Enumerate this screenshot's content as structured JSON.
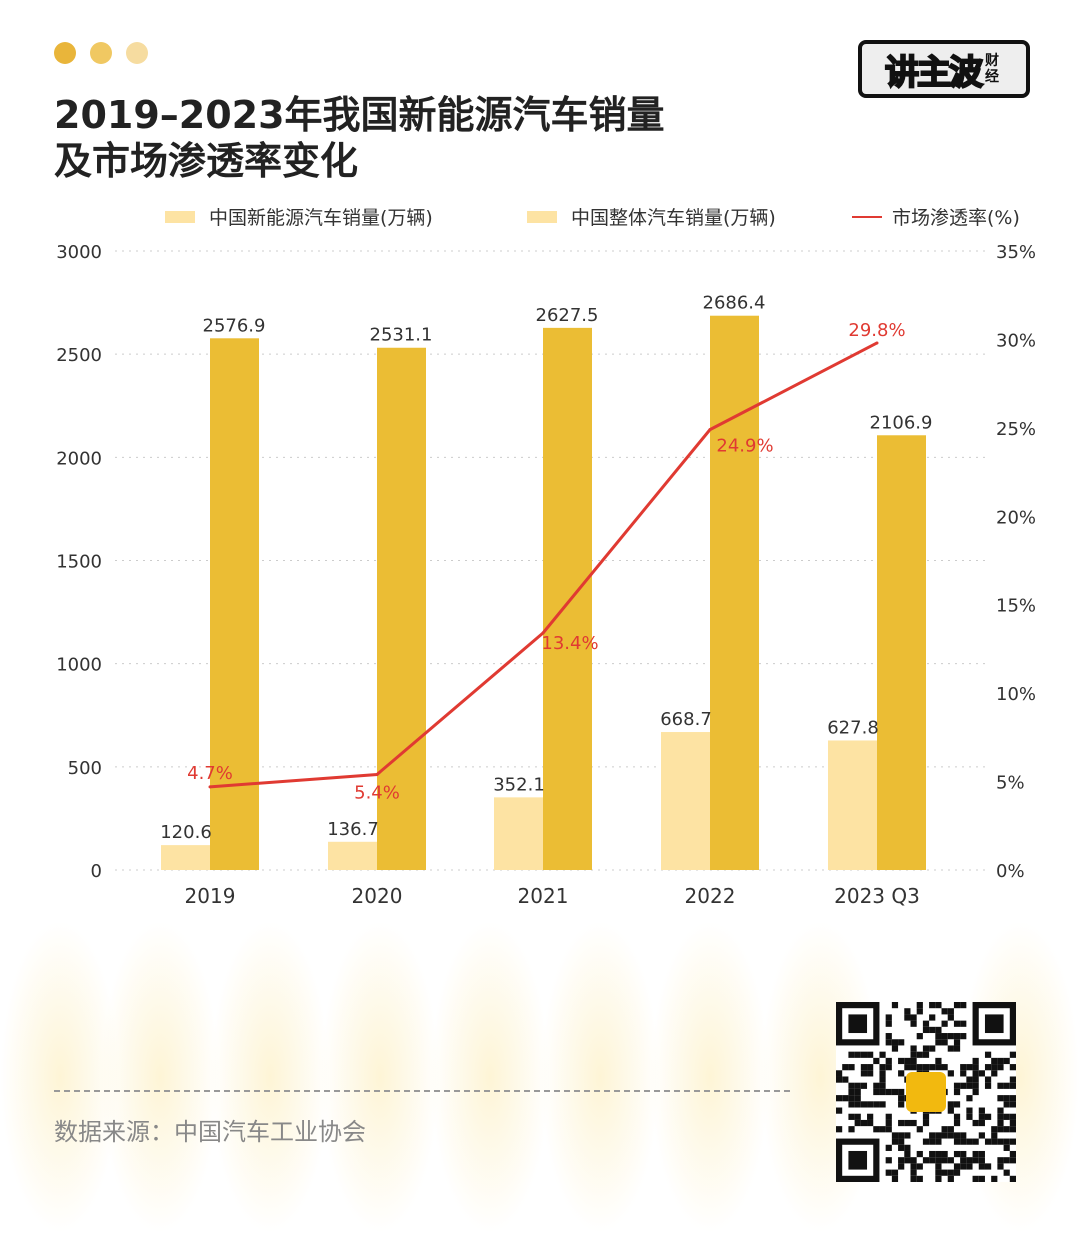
{
  "header": {
    "title_line1": "2019–2023年我国新能源汽车销量",
    "title_line2": "及市场渗透率变化",
    "logo_text": "讲主波财经",
    "dot_colors": [
      "#e9b53a",
      "#f0c862",
      "#f6dca0"
    ]
  },
  "legend": [
    "中国新能源汽车销量(万辆)",
    "中国整体汽车销量(万辆)",
    "市场渗透率(%)"
  ],
  "colors": {
    "nev": "#fde3a3",
    "total": "#ebbd34",
    "line": "#e03a32",
    "legend_swatch": "#fde3a3"
  },
  "chart_data": {
    "type": "bar",
    "title": "2019–2023年我国新能源汽车销量及市场渗透率变化",
    "categories": [
      "2019",
      "2020",
      "2021",
      "2022",
      "2023 Q3"
    ],
    "series": [
      {
        "name": "中国新能源汽车销量(万辆)",
        "values": [
          120.6,
          136.7,
          352.1,
          668.7,
          627.8
        ],
        "labels": [
          "120.6",
          "136.7",
          "352.1",
          "668.7",
          "627.8"
        ]
      },
      {
        "name": "中国整体汽车销量(万辆)",
        "values": [
          2576.9,
          2531.1,
          2627.5,
          2686.4,
          2106.9
        ],
        "labels": [
          "2576.9",
          "2531.1",
          "2627.5",
          "2686.4",
          "2106.9"
        ]
      },
      {
        "name": "市场渗透率(%)",
        "type": "line",
        "axis": "right",
        "values": [
          4.7,
          5.4,
          13.4,
          24.9,
          29.8
        ],
        "labels": [
          "4.7%",
          "5.4%",
          "13.4%",
          "24.9%",
          "29.8%"
        ]
      }
    ],
    "ylim": [
      0,
      3000
    ],
    "y_ticks": [
      "0",
      "500",
      "1000",
      "1500",
      "2000",
      "2500",
      "3000"
    ],
    "y2lim": [
      0,
      35
    ],
    "y2_ticks": [
      "0%",
      "5%",
      "10%",
      "15%",
      "20%",
      "25%",
      "30%",
      "35%"
    ],
    "grid": true,
    "legend_position": "top"
  },
  "footer": {
    "source": "数据来源：中国汽车工业协会"
  }
}
